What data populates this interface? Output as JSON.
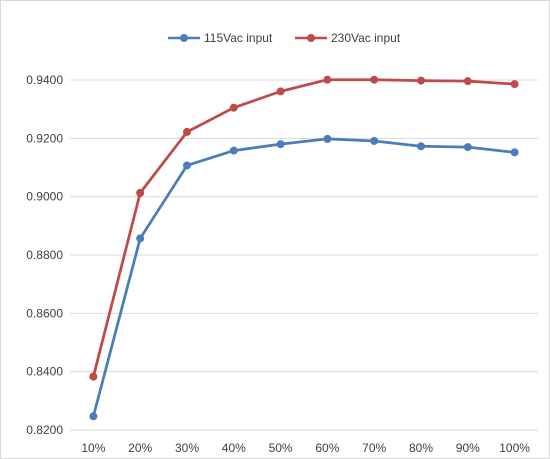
{
  "chart_data": {
    "type": "line",
    "title": "",
    "xlabel": "",
    "ylabel": "",
    "categories": [
      "10%",
      "20%",
      "30%",
      "40%",
      "50%",
      "60%",
      "70%",
      "80%",
      "90%",
      "100%"
    ],
    "ylim": [
      0.82,
      0.94
    ],
    "yticks": [
      "0.8200",
      "0.8400",
      "0.8600",
      "0.8800",
      "0.9000",
      "0.9200",
      "0.9400"
    ],
    "yticks_values": [
      0.82,
      0.84,
      0.86,
      0.88,
      0.9,
      0.92,
      0.94
    ],
    "grid": true,
    "legend_position": "top",
    "series": [
      {
        "name": "115Vac input",
        "color": "#4a7ebb",
        "values": [
          0.8247,
          0.8857,
          0.9107,
          0.9158,
          0.918,
          0.9198,
          0.9191,
          0.9173,
          0.917,
          0.9152
        ]
      },
      {
        "name": "230Vac input",
        "color": "#be4b48",
        "values": [
          0.8383,
          0.9013,
          0.9222,
          0.9305,
          0.9361,
          0.9401,
          0.9401,
          0.9398,
          0.9396,
          0.9386
        ]
      }
    ]
  }
}
